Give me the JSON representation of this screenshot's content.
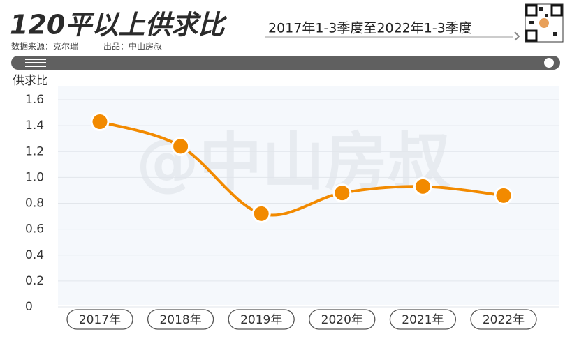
{
  "chart_data": {
    "type": "line",
    "title": "120平以上供求比",
    "subtitle": "2017年1-3季度至2022年1-3季度",
    "source": "数据来源：克尔瑞",
    "producer": "出品：中山房叔",
    "watermark": "@中山房叔",
    "y_label": "供求比",
    "categories": [
      "2017年",
      "2018年",
      "2019年",
      "2020年",
      "2021年",
      "2022年"
    ],
    "values": [
      1.43,
      1.24,
      0.72,
      0.88,
      0.93,
      0.86
    ],
    "color": "#f28a00",
    "ylim": [
      0,
      1.6
    ],
    "yticks": [
      0,
      0.2,
      0.4,
      0.6,
      0.8,
      {
        "value": 1,
        "label": "1.0"
      },
      1.2,
      1.4,
      1.6
    ],
    "grid": true
  }
}
